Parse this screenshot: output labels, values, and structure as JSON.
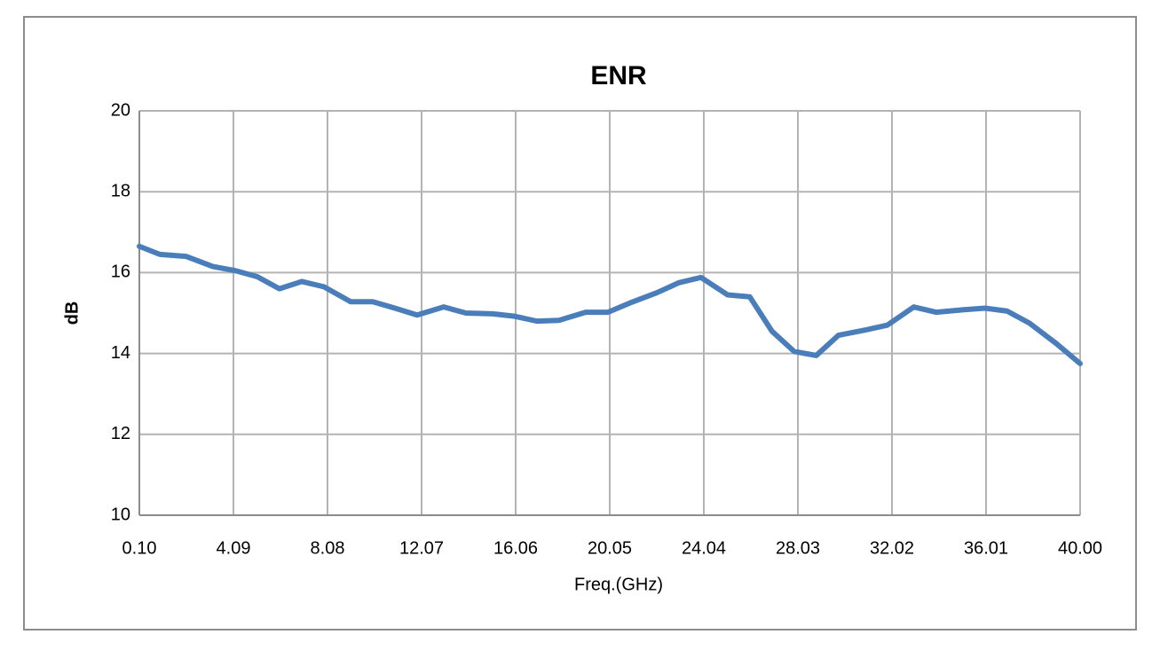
{
  "chart_data": {
    "type": "line",
    "title": "ENR",
    "x_label": "Freq.(GHz)",
    "y_label": "dB",
    "x": [
      0.1,
      0.97,
      2.09,
      3.22,
      4.16,
      5.1,
      6.04,
      6.99,
      7.93,
      9.06,
      10.0,
      10.94,
      11.88,
      13.01,
      13.95,
      15.08,
      16.02,
      16.96,
      17.9,
      19.03,
      19.97,
      20.91,
      22.04,
      22.98,
      23.92,
      25.05,
      25.99,
      26.93,
      27.87,
      28.81,
      29.75,
      30.88,
      31.82,
      32.95,
      33.89,
      35.02,
      35.96,
      36.9,
      37.85,
      38.98,
      40.0
    ],
    "series": [
      {
        "name": "ENR",
        "color": "#4a7ebb",
        "values": [
          16.65,
          16.45,
          16.4,
          16.15,
          16.05,
          15.9,
          15.6,
          15.78,
          15.65,
          15.28,
          15.28,
          15.12,
          14.95,
          15.15,
          15.0,
          14.98,
          14.92,
          14.8,
          14.82,
          15.02,
          15.02,
          15.25,
          15.5,
          15.75,
          15.88,
          15.45,
          15.4,
          14.55,
          14.05,
          13.95,
          14.45,
          14.58,
          14.7,
          15.15,
          15.02,
          15.08,
          15.12,
          15.05,
          14.75,
          14.25,
          13.75
        ]
      }
    ],
    "xlim": [
      0.1,
      40
    ],
    "xticks": [
      {
        "value": 0.1,
        "label": "0.10"
      },
      4.09,
      8.08,
      12.07,
      16.06,
      20.05,
      24.04,
      28.03,
      32.02,
      36.01,
      {
        "value": 40,
        "label": "40.00"
      }
    ],
    "ylim": [
      10,
      20
    ],
    "yticks": [
      10,
      12,
      14,
      16,
      18,
      20
    ],
    "grid": true
  }
}
